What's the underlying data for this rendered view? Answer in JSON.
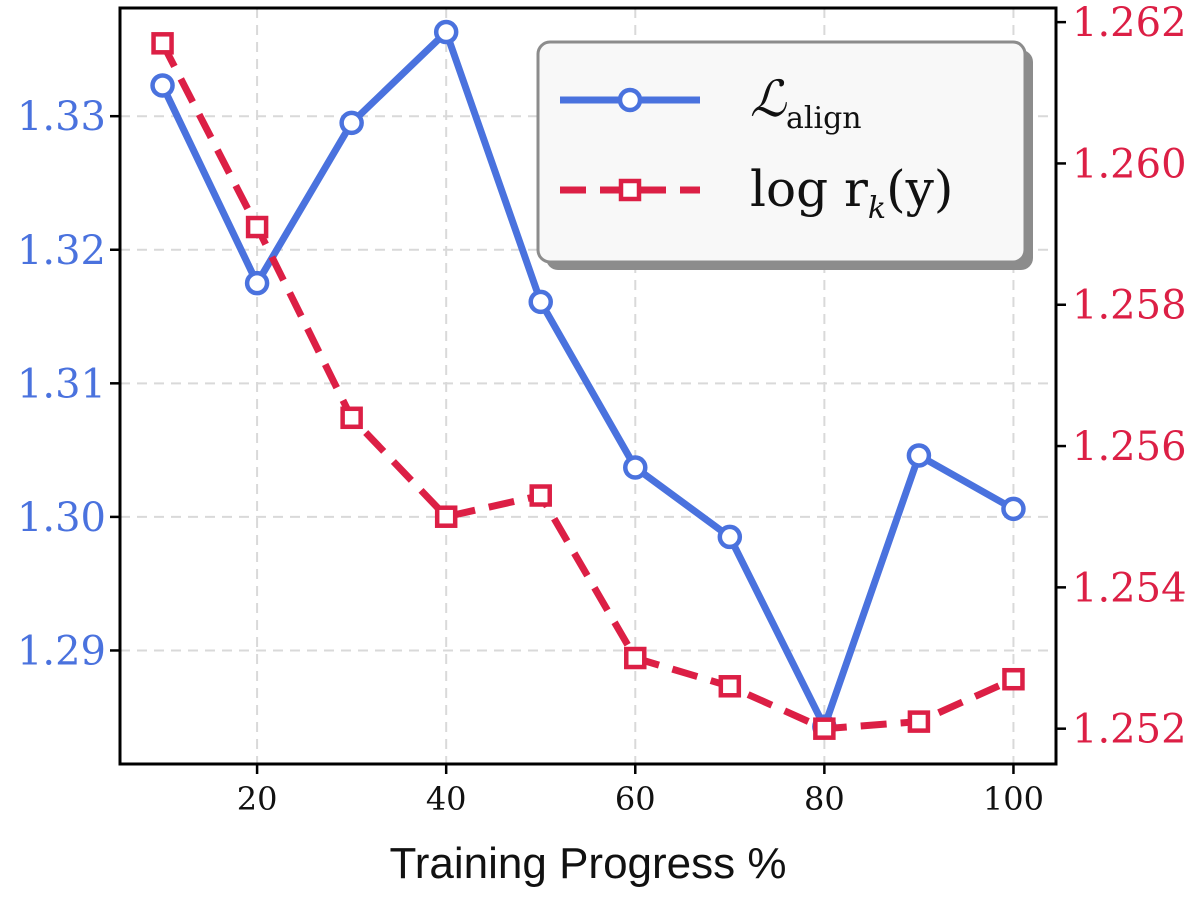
{
  "chart_data": {
    "type": "line",
    "x": [
      10,
      20,
      30,
      40,
      50,
      60,
      70,
      80,
      90,
      100
    ],
    "xlabel": "Training Progress %",
    "xlim": [
      5.5,
      104.5
    ],
    "xticks": [
      20,
      40,
      60,
      80,
      100
    ],
    "grid": true,
    "legend_position": "top-right",
    "y_left": {
      "lim": [
        1.2815,
        1.3381
      ],
      "ticks": [
        1.29,
        1.3,
        1.31,
        1.32,
        1.33
      ],
      "tick_labels": [
        "1.29",
        "1.30",
        "1.31",
        "1.32",
        "1.33"
      ],
      "color": "#4a72de"
    },
    "y_right": {
      "lim": [
        1.2515,
        1.2622
      ],
      "ticks": [
        1.252,
        1.254,
        1.256,
        1.258,
        1.26,
        1.262
      ],
      "tick_labels": [
        "1.252",
        "1.254",
        "1.256",
        "1.258",
        "1.260",
        "1.262"
      ],
      "color": "#dc1f45"
    },
    "series": [
      {
        "name_main": "ℒ",
        "name_sub": "align",
        "axis": "left",
        "color": "#4a72de",
        "style": "solid",
        "marker": "circle",
        "values": [
          1.3323,
          1.3175,
          1.3295,
          1.3363,
          1.3161,
          1.3037,
          1.2985,
          1.2843,
          1.3046,
          1.3006
        ]
      },
      {
        "name_main": "log r",
        "name_sub": "k",
        "name_tail": "(y)",
        "axis": "right",
        "color": "#dc1f45",
        "style": "dashed",
        "marker": "square",
        "values": [
          1.2617,
          1.2591,
          1.2564,
          1.255,
          1.2553,
          1.253,
          1.2526,
          1.252,
          1.2521,
          1.2527
        ]
      }
    ]
  }
}
